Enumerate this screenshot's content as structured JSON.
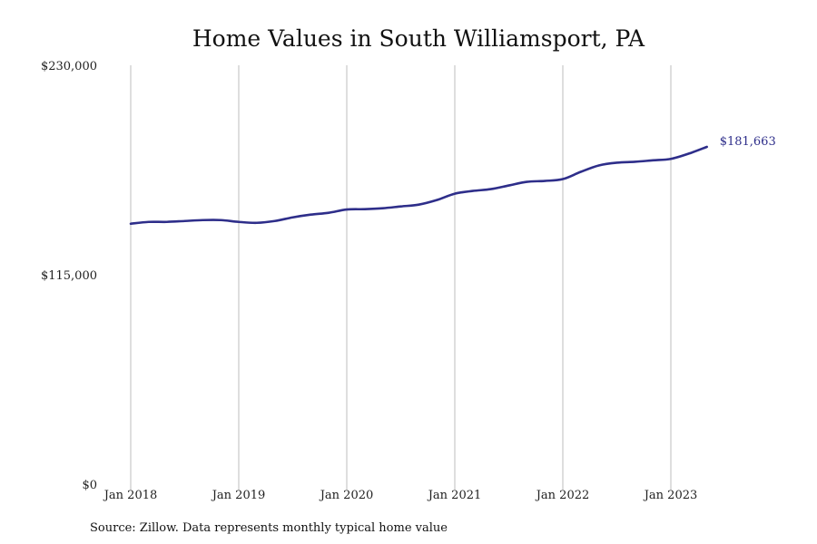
{
  "chart_data": {
    "type": "line",
    "title": "Home Values in South Williamsport, PA",
    "source": "Source: Zillow. Data represents monthly typical home value",
    "ylim": [
      0,
      230000
    ],
    "y_ticks": [
      {
        "value": 0,
        "label": "$0"
      },
      {
        "value": 115000,
        "label": "$115,000"
      },
      {
        "value": 230000,
        "label": "$230,000"
      }
    ],
    "x_ticks": [
      {
        "value": "2018-01",
        "label": "Jan 2018"
      },
      {
        "value": "2019-01",
        "label": "Jan 2019"
      },
      {
        "value": "2020-01",
        "label": "Jan 2020"
      },
      {
        "value": "2021-01",
        "label": "Jan 2021"
      },
      {
        "value": "2022-01",
        "label": "Jan 2022"
      },
      {
        "value": "2023-01",
        "label": "Jan 2023"
      }
    ],
    "grid": "vertical",
    "color": "#2e2e8a",
    "end_label": "$181,663",
    "series": [
      {
        "x": [
          "2018-01",
          "2018-03",
          "2018-05",
          "2018-07",
          "2018-09",
          "2018-11",
          "2019-01",
          "2019-03",
          "2019-05",
          "2019-07",
          "2019-09",
          "2019-11",
          "2020-01",
          "2020-03",
          "2020-05",
          "2020-07",
          "2020-09",
          "2020-11",
          "2021-01",
          "2021-03",
          "2021-05",
          "2021-07",
          "2021-09",
          "2021-11",
          "2022-01",
          "2022-03",
          "2022-05",
          "2022-07",
          "2022-09",
          "2022-11",
          "2023-01",
          "2023-03",
          "2023-05"
        ],
        "values": [
          143000,
          144000,
          144000,
          144500,
          145000,
          145000,
          144000,
          143500,
          144500,
          146500,
          148000,
          149000,
          150800,
          151000,
          151500,
          152500,
          153500,
          156000,
          159500,
          161000,
          162000,
          164000,
          166000,
          166500,
          167500,
          171500,
          175000,
          176500,
          177000,
          177800,
          178600,
          181500,
          185200
        ]
      }
    ]
  }
}
